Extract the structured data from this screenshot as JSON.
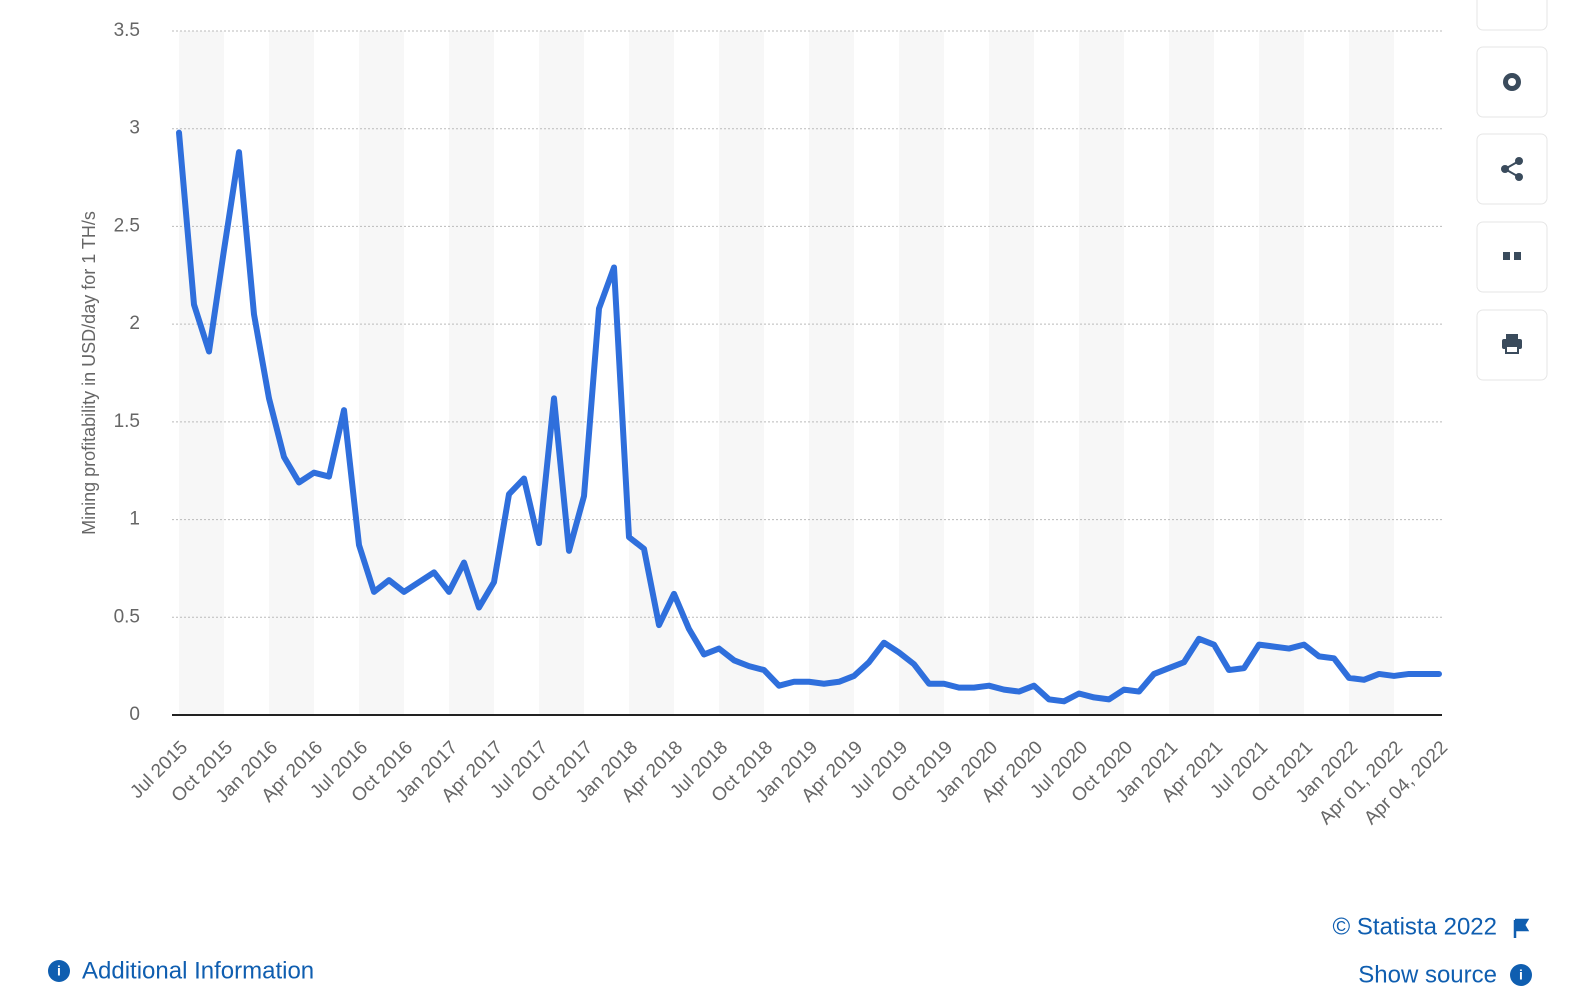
{
  "chart_data": {
    "type": "line",
    "y_label": "Mining profitability in USD/day for 1 TH/s",
    "categories": [
      "Jul 2015",
      null,
      null,
      "Oct 2015",
      null,
      null,
      "Jan 2016",
      null,
      null,
      "Apr 2016",
      null,
      null,
      "Jul 2016",
      null,
      null,
      "Oct 2016",
      null,
      null,
      "Jan 2017",
      null,
      null,
      "Apr 2017",
      null,
      null,
      "Jul 2017",
      null,
      null,
      "Oct 2017",
      null,
      null,
      "Jan 2018",
      null,
      null,
      "Apr 2018",
      null,
      null,
      "Jul 2018",
      null,
      null,
      "Oct 2018",
      null,
      null,
      "Jan 2019",
      null,
      null,
      "Apr 2019",
      null,
      null,
      "Jul 2019",
      null,
      null,
      "Oct 2019",
      null,
      null,
      "Jan 2020",
      null,
      null,
      "Apr 2020",
      null,
      null,
      "Jul 2020",
      null,
      null,
      "Oct 2020",
      null,
      null,
      "Jan 2021",
      null,
      null,
      "Apr 2021",
      null,
      null,
      "Jul 2021",
      null,
      null,
      "Oct 2021",
      null,
      null,
      "Jan 2022",
      null,
      null,
      "Apr 01, 2022",
      null,
      null,
      "Apr 04, 2022"
    ],
    "values": [
      2.98,
      2.1,
      1.86,
      2.38,
      2.88,
      2.05,
      1.62,
      1.32,
      1.19,
      1.24,
      1.22,
      1.56,
      0.87,
      0.63,
      0.69,
      0.63,
      0.68,
      0.73,
      0.63,
      0.78,
      0.55,
      0.68,
      1.13,
      1.21,
      0.88,
      1.62,
      0.84,
      1.12,
      2.08,
      2.29,
      0.91,
      0.85,
      0.46,
      0.62,
      0.44,
      0.31,
      0.34,
      0.28,
      0.25,
      0.23,
      0.15,
      0.17,
      0.17,
      0.16,
      0.17,
      0.2,
      0.27,
      0.37,
      0.32,
      0.26,
      0.16,
      0.16,
      0.14,
      0.14,
      0.15,
      0.13,
      0.12,
      0.15,
      0.08,
      0.07,
      0.11,
      0.09,
      0.08,
      0.13,
      0.12,
      0.21,
      0.24,
      0.27,
      0.39,
      0.36,
      0.23,
      0.24,
      0.36,
      0.35,
      0.34,
      0.36,
      0.3,
      0.29,
      0.19,
      0.18,
      0.21,
      0.2,
      0.21,
      0.21,
      0.21
    ],
    "color": "#2f6fdc",
    "ylim": [
      0,
      3.5
    ],
    "yticks": [
      0,
      0.5,
      1,
      1.5,
      2,
      2.5,
      3,
      3.5
    ],
    "grid": true
  },
  "footer": {
    "copyright": "© Statista 2022",
    "additional_info": "Additional Information",
    "show_source": "Show source"
  }
}
